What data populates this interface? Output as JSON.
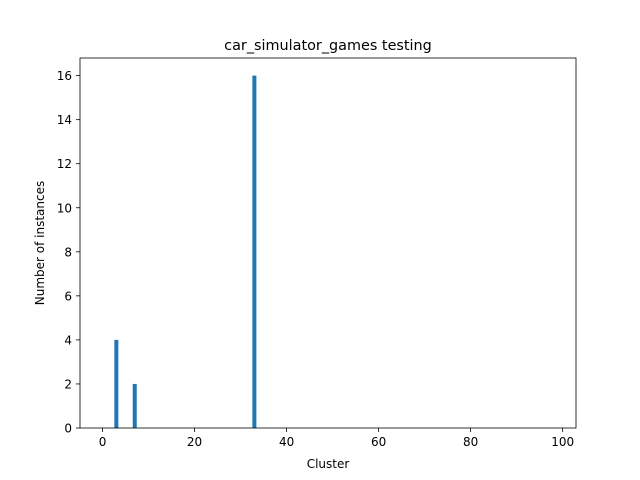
{
  "chart_data": {
    "type": "bar",
    "title": "car_simulator_games testing",
    "xlabel": "Cluster",
    "ylabel": "Number of instances",
    "x": [
      3,
      7,
      33
    ],
    "values": [
      4,
      2,
      16
    ],
    "xlim": [
      -4.9,
      102.9
    ],
    "ylim": [
      0,
      16.8
    ],
    "xticks": [
      0,
      20,
      40,
      60,
      80,
      100
    ],
    "yticks": [
      0,
      2,
      4,
      6,
      8,
      10,
      12,
      14,
      16
    ],
    "bar_color": "#1f77b4",
    "grid": false
  }
}
